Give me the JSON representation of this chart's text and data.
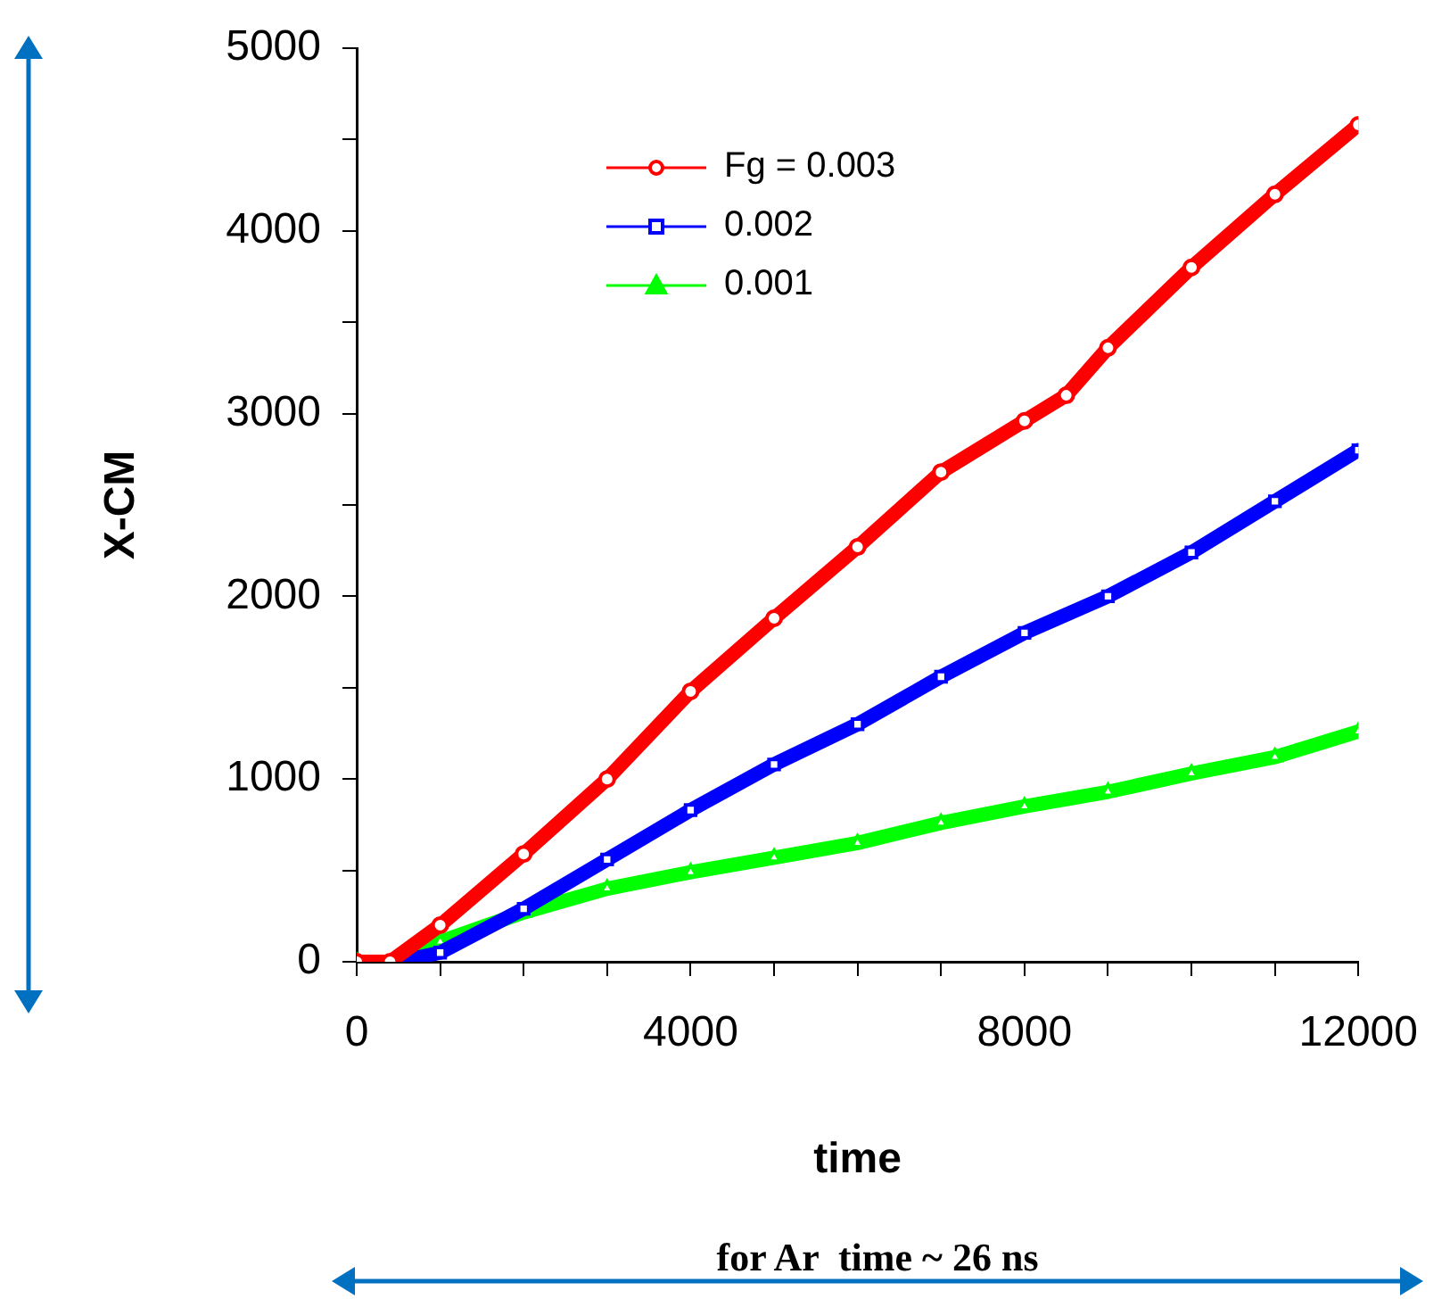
{
  "chart_data": {
    "type": "line",
    "xlabel": "time",
    "ylabel": "X-CM",
    "xlim": [
      0,
      12000
    ],
    "ylim": [
      0,
      5000
    ],
    "xticks": [
      0,
      {
        "value": 1000,
        "label": null
      },
      {
        "value": 2000,
        "label": null
      },
      {
        "value": 3000,
        "label": null
      },
      4000,
      {
        "value": 5000,
        "label": null
      },
      {
        "value": 6000,
        "label": null
      },
      {
        "value": 7000,
        "label": null
      },
      8000,
      {
        "value": 9000,
        "label": null
      },
      {
        "value": 10000,
        "label": null
      },
      {
        "value": 11000,
        "label": null
      },
      12000
    ],
    "yticks": [
      0,
      {
        "value": 500,
        "label": null
      },
      1000,
      {
        "value": 1500,
        "label": null
      },
      2000,
      {
        "value": 2500,
        "label": null
      },
      3000,
      {
        "value": 3500,
        "label": null
      },
      4000,
      {
        "value": 4500,
        "label": null
      },
      5000
    ],
    "grid": false,
    "legend": "top left",
    "line_style": "solid",
    "annotations": [
      "for Ar  time ~ 26 ns"
    ],
    "series": [
      {
        "name": "Fg = 0.003",
        "color": "#ff0000",
        "marker": "circle",
        "x": [
          0,
          400,
          1000,
          2000,
          3000,
          4000,
          5000,
          6000,
          7000,
          8000,
          8500,
          9000,
          10000,
          11000,
          12000
        ],
        "values": [
          0,
          0,
          200,
          590,
          1000,
          1480,
          1880,
          2270,
          2680,
          2960,
          3100,
          3360,
          3800,
          4200,
          4580
        ]
      },
      {
        "name": "0.002",
        "color": "#0000ff",
        "marker": "square",
        "x": [
          0,
          500,
          1000,
          2000,
          3000,
          4000,
          5000,
          6000,
          7000,
          8000,
          9000,
          10000,
          11000,
          12000
        ],
        "values": [
          0,
          0,
          50,
          290,
          560,
          830,
          1080,
          1300,
          1560,
          1800,
          2000,
          2240,
          2520,
          2800
        ]
      },
      {
        "name": "0.001",
        "color": "#00ff00",
        "marker": "triangle",
        "x": [
          0,
          500,
          1000,
          2000,
          3000,
          4000,
          5000,
          6000,
          7000,
          8000,
          9000,
          10000,
          11000,
          12000
        ],
        "values": [
          0,
          0,
          110,
          270,
          400,
          490,
          570,
          650,
          760,
          850,
          930,
          1030,
          1120,
          1260
        ]
      }
    ]
  }
}
